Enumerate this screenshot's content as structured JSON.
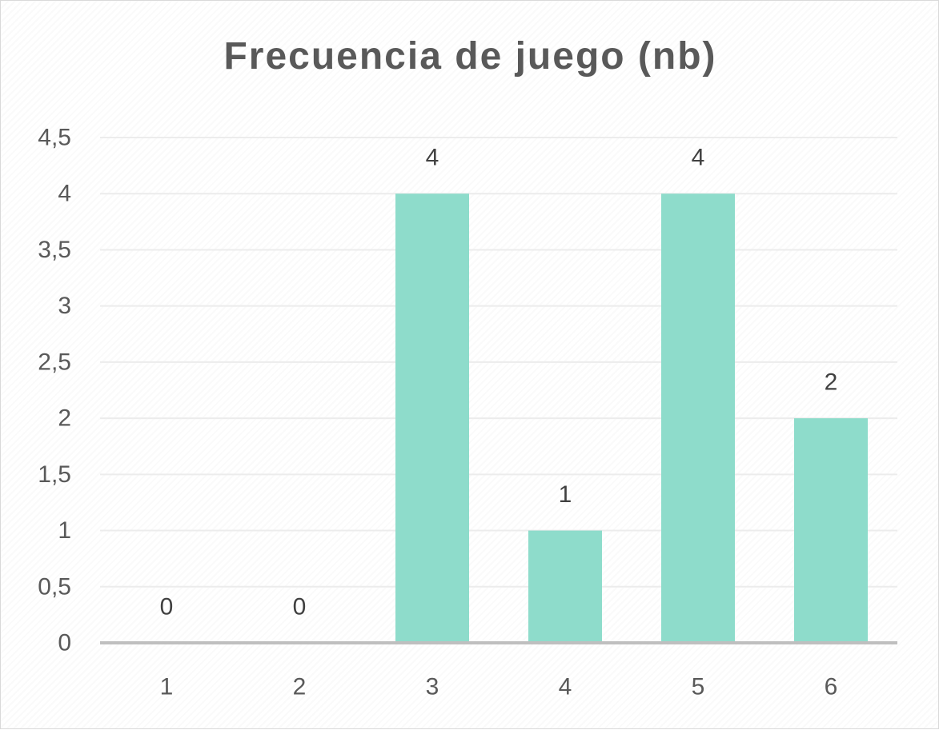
{
  "chart_data": {
    "type": "bar",
    "title": "Frecuencia de juego (nb)",
    "xlabel": "",
    "ylabel": "",
    "categories": [
      "1",
      "2",
      "3",
      "4",
      "5",
      "6"
    ],
    "values": [
      0,
      0,
      4,
      1,
      4,
      2
    ],
    "data_labels": [
      "0",
      "0",
      "4",
      "1",
      "4",
      "2"
    ],
    "ylim": [
      0,
      4.5
    ],
    "y_ticks": [
      0,
      0.5,
      1,
      1.5,
      2,
      2.5,
      3,
      3.5,
      4,
      4.5
    ],
    "y_tick_labels": [
      "0",
      "0,5",
      "1",
      "1,5",
      "2",
      "2,5",
      "3",
      "3,5",
      "4",
      "4,5"
    ],
    "grid": true,
    "legend": "none",
    "bar_color": "#8edccb",
    "text_color": "#595959"
  }
}
